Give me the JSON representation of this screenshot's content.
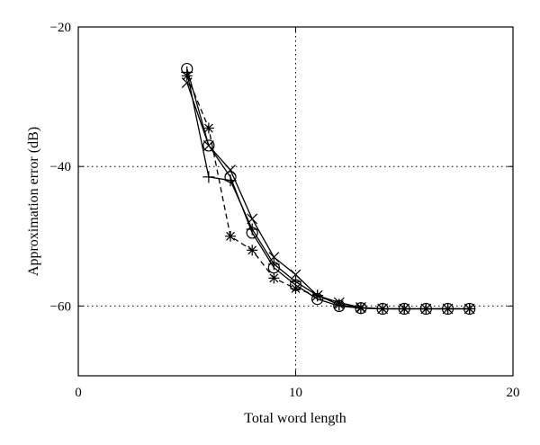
{
  "chart_data": {
    "type": "line",
    "title": "",
    "xlabel": "Total word length",
    "ylabel": "Approximation error (dB)",
    "xlim": [
      0,
      20
    ],
    "ylim": [
      -70,
      -20
    ],
    "xticks": [
      0,
      10,
      20
    ],
    "yticks": [
      -20,
      -40,
      -60
    ],
    "xtick_labels": [
      "0",
      "10",
      "20"
    ],
    "ytick_labels": [
      "−20",
      "−40",
      "−60"
    ],
    "grid": "dotted lines at x=10, y=-40, y=-60",
    "legend": "none",
    "series": [
      {
        "marker": "circle",
        "line": "solid",
        "x": [
          5,
          6,
          7,
          8,
          9,
          10,
          11,
          12,
          13,
          14,
          15,
          16,
          17,
          18
        ],
        "y": [
          -26,
          -37,
          -41.5,
          -49.5,
          -54.5,
          -57,
          -59,
          -60,
          -60.3,
          -60.4,
          -60.4,
          -60.4,
          -60.4,
          -60.4
        ]
      },
      {
        "marker": "x",
        "line": "solid",
        "x": [
          5,
          6,
          7,
          8,
          9,
          10,
          11,
          12,
          13,
          14,
          15,
          16,
          17,
          18
        ],
        "y": [
          -28,
          -37,
          -40.5,
          -47.5,
          -53,
          -55.5,
          -58.5,
          -59.5,
          -60.2,
          -60.4,
          -60.4,
          -60.4,
          -60.4,
          -60.4
        ]
      },
      {
        "marker": "plus",
        "line": "solid",
        "x": [
          5,
          6,
          7,
          8,
          9,
          10,
          11,
          12,
          13,
          14,
          15,
          16,
          17,
          18
        ],
        "y": [
          -26.5,
          -41.5,
          -42,
          -49,
          -54,
          -56.5,
          -58.5,
          -59.8,
          -60.3,
          -60.4,
          -60.4,
          -60.4,
          -60.4,
          -60.4
        ]
      },
      {
        "marker": "asterisk",
        "line": "dashed",
        "x": [
          5,
          6,
          7,
          8,
          9,
          10,
          11,
          12,
          13,
          14,
          15,
          16,
          17,
          18
        ],
        "y": [
          -27,
          -34.5,
          -50,
          -52,
          -56,
          -57.5,
          -58.5,
          -59.8,
          -60.3,
          -60.4,
          -60.4,
          -60.4,
          -60.4,
          -60.4
        ]
      }
    ]
  }
}
